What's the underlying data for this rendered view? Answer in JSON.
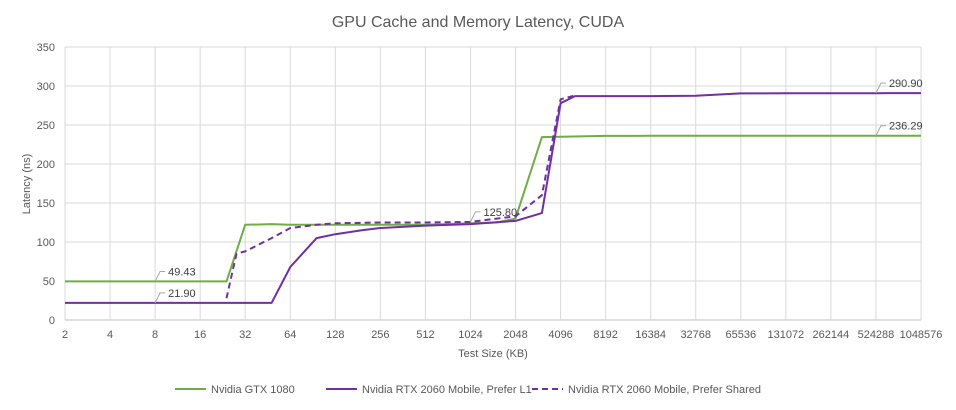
{
  "chart_data": {
    "type": "line",
    "title": "GPU Cache and Memory Latency, CUDA",
    "xlabel": "Test Size (KB)",
    "ylabel": "Latency (ns)",
    "x_scale": "log2",
    "x_ticks": [
      "2",
      "4",
      "8",
      "16",
      "32",
      "64",
      "128",
      "256",
      "512",
      "1024",
      "2048",
      "4096",
      "8192",
      "16384",
      "32768",
      "65536",
      "131072",
      "262144",
      "524288",
      "1048576"
    ],
    "y_ticks": [
      "0",
      "50",
      "100",
      "150",
      "200",
      "250",
      "300",
      "350"
    ],
    "ylim": [
      0,
      350
    ],
    "xlim": [
      2,
      1048576
    ],
    "grid": true,
    "legend_position": "bottom",
    "series": [
      {
        "name": "Nvidia GTX 1080",
        "color": "#70AD47",
        "dash": false,
        "points": [
          [
            2,
            49.43
          ],
          [
            4,
            49.43
          ],
          [
            8,
            49.43
          ],
          [
            16,
            49.43
          ],
          [
            24,
            49.43
          ],
          [
            32,
            122
          ],
          [
            48,
            123
          ],
          [
            64,
            122
          ],
          [
            96,
            122
          ],
          [
            128,
            122
          ],
          [
            256,
            122
          ],
          [
            512,
            122
          ],
          [
            1024,
            124
          ],
          [
            1536,
            125
          ],
          [
            2048,
            130
          ],
          [
            3072,
            234.5
          ],
          [
            4096,
            235
          ],
          [
            8192,
            236
          ],
          [
            16384,
            236.1
          ],
          [
            32768,
            236.2
          ],
          [
            65536,
            236.2
          ],
          [
            131072,
            236.3
          ],
          [
            262144,
            236.3
          ],
          [
            524288,
            236.3
          ],
          [
            1048576,
            236.29
          ]
        ]
      },
      {
        "name": "Nvidia RTX 2060 Mobile, Prefer L1",
        "color": "#7030A0",
        "dash": false,
        "points": [
          [
            2,
            21.9
          ],
          [
            4,
            21.9
          ],
          [
            8,
            21.9
          ],
          [
            16,
            21.9
          ],
          [
            24,
            21.9
          ],
          [
            32,
            21.9
          ],
          [
            48,
            21.9
          ],
          [
            64,
            68
          ],
          [
            96,
            105
          ],
          [
            128,
            110
          ],
          [
            192,
            115
          ],
          [
            256,
            118
          ],
          [
            512,
            121
          ],
          [
            1024,
            123
          ],
          [
            2048,
            127
          ],
          [
            3072,
            137
          ],
          [
            4096,
            278
          ],
          [
            5120,
            287
          ],
          [
            8192,
            287
          ],
          [
            16384,
            287
          ],
          [
            32768,
            287.5
          ],
          [
            65536,
            290.5
          ],
          [
            131072,
            290.7
          ],
          [
            262144,
            290.8
          ],
          [
            524288,
            290.8
          ],
          [
            1048576,
            290.9
          ]
        ]
      },
      {
        "name": "Nvidia RTX 2060 Mobile, Prefer Shared",
        "color": "#7030A0",
        "dash": true,
        "points": [
          [
            24,
            28
          ],
          [
            28,
            85
          ],
          [
            32,
            88
          ],
          [
            48,
            105
          ],
          [
            64,
            118
          ],
          [
            96,
            122
          ],
          [
            128,
            124
          ],
          [
            256,
            125
          ],
          [
            512,
            125
          ],
          [
            1024,
            125.8
          ],
          [
            2048,
            133
          ],
          [
            3072,
            160
          ],
          [
            4096,
            283
          ],
          [
            5120,
            288
          ]
        ]
      }
    ],
    "annotations": [
      {
        "label": "49.43",
        "x": 8,
        "y": 49.43
      },
      {
        "label": "21.90",
        "x": 8,
        "y": 21.9
      },
      {
        "label": "125.80",
        "x": 1024,
        "y": 125.8
      },
      {
        "label": "290.90",
        "x": 524288,
        "y": 290.9
      },
      {
        "label": "236.29",
        "x": 524288,
        "y": 236.29
      }
    ]
  }
}
